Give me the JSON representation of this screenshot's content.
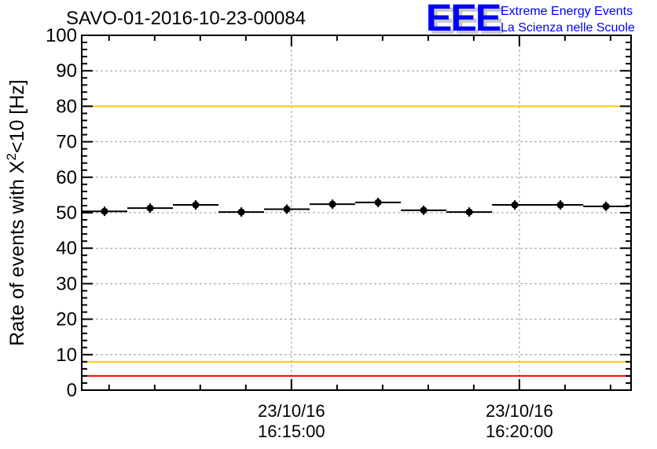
{
  "title": "SAVO-01-2016-10-23-00084",
  "logo": {
    "mark": "EEE",
    "line1": "Extreme Energy Events",
    "line2": "La Scienza nelle Scuole"
  },
  "colors": {
    "limit_red": "#ff0000",
    "limit_orange": "#ffcc00",
    "data": "#000000",
    "grid": "#999999",
    "logo": "#0000ff"
  },
  "chart_data": {
    "type": "scatter",
    "title": "SAVO-01-2016-10-23-00084",
    "xlabel": "",
    "ylabel": "Rate of events with X²<10 [Hz]",
    "ylabel_parts": {
      "pre": "Rate of events with X",
      "sup": "2",
      "post": "<10 [Hz]"
    },
    "x_unit": "minutes after 23/10/16 16:10:00",
    "xlim": [
      0.4,
      12.45
    ],
    "ylim": [
      0,
      100
    ],
    "yticks": [
      0,
      10,
      20,
      30,
      40,
      50,
      60,
      70,
      80,
      90,
      100
    ],
    "xticks": [
      {
        "value": 5,
        "date": "23/10/16",
        "time": "16:15:00"
      },
      {
        "value": 10,
        "date": "23/10/16",
        "time": "16:20:00"
      }
    ],
    "grid": true,
    "bin_width": 1,
    "x": [
      0.9,
      1.9,
      2.9,
      3.9,
      4.9,
      5.9,
      6.9,
      7.9,
      8.9,
      9.9,
      10.9,
      11.9
    ],
    "y": [
      50.4,
      51.3,
      52.2,
      50.2,
      51.0,
      52.4,
      52.9,
      50.7,
      50.2,
      52.2,
      52.2,
      51.8
    ],
    "hlines": [
      {
        "value": 100,
        "color": "#ff0000"
      },
      {
        "value": 80,
        "color": "#ffcc00"
      },
      {
        "value": 8,
        "color": "#ffcc00"
      },
      {
        "value": 4,
        "color": "#ff0000"
      }
    ]
  }
}
